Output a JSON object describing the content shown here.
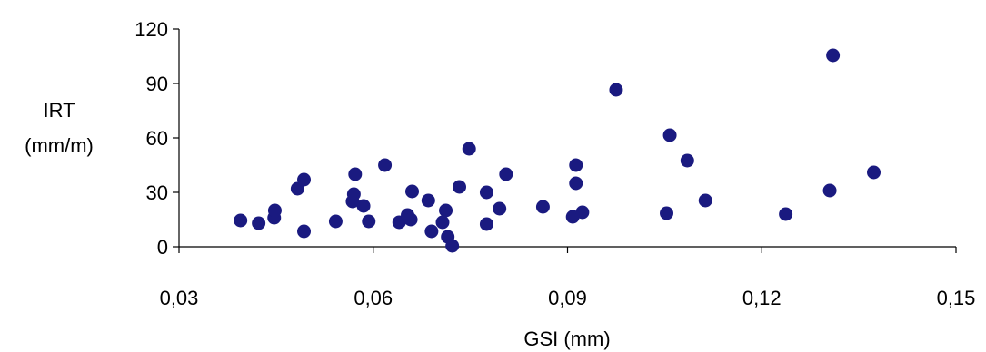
{
  "chart_data": {
    "type": "scatter",
    "xlabel": "GSI (mm)",
    "ylabel_lines": [
      "IRT",
      "(mm/m)"
    ],
    "xlim": [
      0.03,
      0.15
    ],
    "ylim": [
      0,
      120
    ],
    "x_ticks": [
      0.03,
      0.06,
      0.09,
      0.12,
      0.15
    ],
    "x_tick_labels": [
      "0,03",
      "0,06",
      "0,09",
      "0,12",
      "0,15"
    ],
    "y_ticks": [
      0,
      30,
      60,
      90,
      120
    ],
    "y_tick_labels": [
      "0",
      "30",
      "60",
      "90",
      "120"
    ],
    "grid": false,
    "marker_color": "#1a1a80",
    "series": [
      {
        "points": [
          [
            0.0395,
            14.5
          ],
          [
            0.0423,
            13
          ],
          [
            0.0447,
            16
          ],
          [
            0.0448,
            20
          ],
          [
            0.0483,
            32
          ],
          [
            0.0493,
            37
          ],
          [
            0.0493,
            8.5
          ],
          [
            0.0542,
            14
          ],
          [
            0.0568,
            25
          ],
          [
            0.057,
            29
          ],
          [
            0.0572,
            40
          ],
          [
            0.0585,
            22.5
          ],
          [
            0.0593,
            14
          ],
          [
            0.0618,
            45
          ],
          [
            0.064,
            13.5
          ],
          [
            0.0653,
            17.5
          ],
          [
            0.0658,
            15
          ],
          [
            0.066,
            30.5
          ],
          [
            0.0685,
            25.5
          ],
          [
            0.069,
            8.5
          ],
          [
            0.0707,
            13.5
          ],
          [
            0.0712,
            20
          ],
          [
            0.0715,
            5.5
          ],
          [
            0.0722,
            0.5
          ],
          [
            0.0733,
            33
          ],
          [
            0.0748,
            54
          ],
          [
            0.0775,
            30
          ],
          [
            0.0775,
            12.5
          ],
          [
            0.0795,
            21
          ],
          [
            0.0805,
            40
          ],
          [
            0.0862,
            22
          ],
          [
            0.0908,
            16.5
          ],
          [
            0.0913,
            45
          ],
          [
            0.0913,
            35
          ],
          [
            0.0923,
            19
          ],
          [
            0.0975,
            86.5
          ],
          [
            0.1053,
            18.5
          ],
          [
            0.1058,
            61.5
          ],
          [
            0.1085,
            47.5
          ],
          [
            0.1113,
            25.5
          ],
          [
            0.1237,
            18
          ],
          [
            0.1305,
            31
          ],
          [
            0.131,
            105.5
          ],
          [
            0.1373,
            41
          ]
        ]
      }
    ]
  }
}
